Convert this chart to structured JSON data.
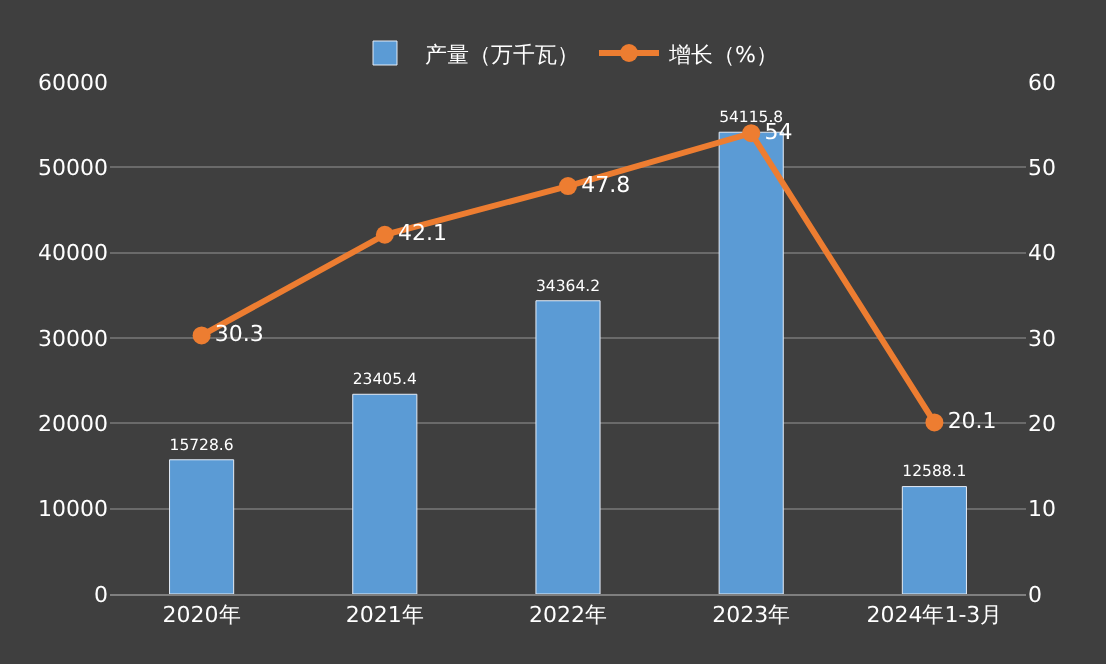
{
  "chart_data": {
    "type": "bar",
    "categories": [
      "2020年",
      "2021年",
      "2022年",
      "2023年",
      "2024年1-3月"
    ],
    "series": [
      {
        "name": "产量（万千瓦）",
        "color": "#5b9bd5",
        "values": [
          15728.6,
          23405.4,
          34364.2,
          54115.8,
          12588.1
        ]
      },
      {
        "name": "增长（%）",
        "type": "line",
        "axis": "y2",
        "color": "#ed7d31",
        "marker": "circle",
        "values": [
          30.3,
          42.1,
          47.8,
          54,
          20.1
        ]
      }
    ],
    "ylim": [
      0,
      60000
    ],
    "yticks": [
      0,
      10000,
      20000,
      30000,
      40000,
      50000,
      60000
    ],
    "y2lim": [
      0,
      60
    ],
    "y2ticks": [
      0,
      10,
      20,
      30,
      40,
      50,
      60
    ],
    "grid": "y",
    "legend": "top",
    "data_labels": true
  }
}
